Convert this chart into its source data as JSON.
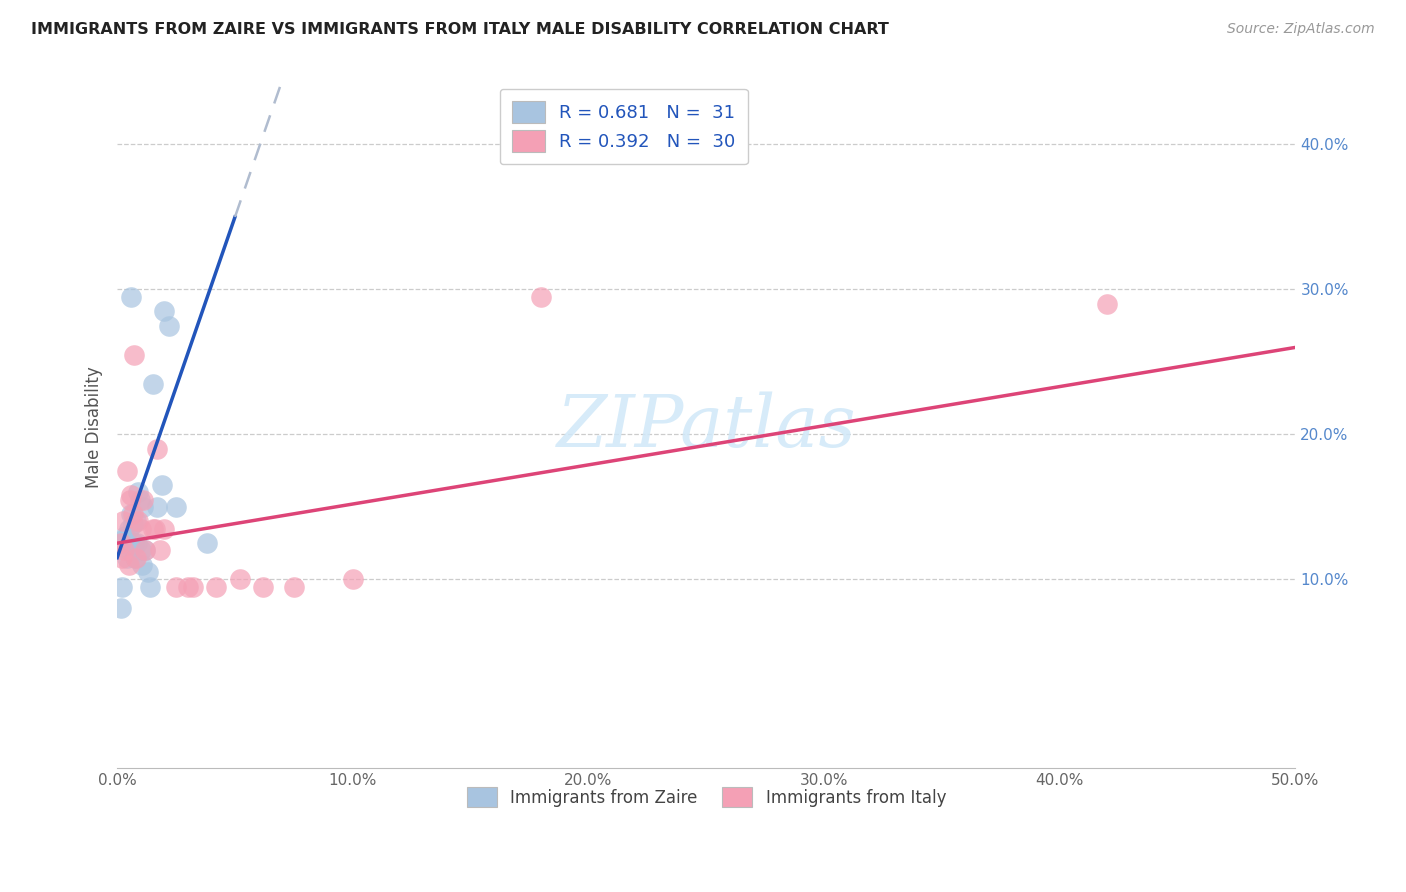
{
  "title": "IMMIGRANTS FROM ZAIRE VS IMMIGRANTS FROM ITALY MALE DISABILITY CORRELATION CHART",
  "source": "Source: ZipAtlas.com",
  "ylabel": "Male Disability",
  "x_ticks": [
    0.0,
    10.0,
    20.0,
    30.0,
    40.0,
    50.0
  ],
  "x_tick_labels": [
    "0.0%",
    "10.0%",
    "20.0%",
    "30.0%",
    "40.0%",
    "50.0%"
  ],
  "y_ticks_right": [
    10.0,
    20.0,
    30.0,
    40.0
  ],
  "y_tick_labels_right": [
    "10.0%",
    "20.0%",
    "30.0%",
    "40.0%"
  ],
  "xlim": [
    0.0,
    50.0
  ],
  "ylim": [
    -3.0,
    44.0
  ],
  "legend_r1": "R = 0.681   N =  31",
  "legend_r2": "R = 0.392   N =  30",
  "legend_label1": "Immigrants from Zaire",
  "legend_label2": "Immigrants from Italy",
  "zaire_color": "#a8c4e0",
  "italy_color": "#f4a0b5",
  "zaire_line_color": "#2255bb",
  "italy_line_color": "#dd4477",
  "dash_line_color": "#b0bccf",
  "watermark_color": "#d0e8f8",
  "zaire_x": [
    0.15,
    0.2,
    0.25,
    0.3,
    0.35,
    0.4,
    0.45,
    0.5,
    0.55,
    0.6,
    0.65,
    0.7,
    0.75,
    0.8,
    0.85,
    0.9,
    0.95,
    1.0,
    1.05,
    1.1,
    1.2,
    1.3,
    1.4,
    1.5,
    1.7,
    1.9,
    2.0,
    2.2,
    2.5,
    0.6,
    3.8
  ],
  "zaire_y": [
    8.0,
    9.5,
    12.5,
    12.8,
    13.0,
    11.5,
    12.0,
    13.5,
    12.0,
    14.5,
    13.8,
    12.5,
    11.5,
    14.0,
    12.5,
    16.0,
    15.5,
    12.0,
    11.0,
    15.0,
    12.0,
    10.5,
    9.5,
    23.5,
    15.0,
    16.5,
    28.5,
    27.5,
    15.0,
    29.5,
    12.5
  ],
  "italy_x": [
    0.15,
    0.2,
    0.25,
    0.3,
    0.4,
    0.5,
    0.55,
    0.6,
    0.65,
    0.7,
    0.8,
    0.9,
    1.0,
    1.1,
    1.2,
    1.5,
    1.6,
    1.7,
    1.8,
    2.0,
    2.5,
    3.0,
    3.2,
    4.2,
    5.2,
    6.2,
    7.5,
    10.0,
    18.0,
    42.0
  ],
  "italy_y": [
    12.5,
    11.5,
    14.0,
    12.0,
    17.5,
    11.0,
    15.5,
    15.8,
    14.5,
    25.5,
    11.5,
    14.0,
    13.5,
    15.5,
    12.0,
    13.5,
    13.5,
    19.0,
    12.0,
    13.5,
    9.5,
    9.5,
    9.5,
    9.5,
    10.0,
    9.5,
    9.5,
    10.0,
    29.5,
    29.0
  ],
  "zaire_line_x0": 0.0,
  "zaire_line_x1": 5.0,
  "zaire_line_dash_x0": 5.0,
  "zaire_line_dash_x1": 50.0,
  "italy_line_x0": 0.0,
  "italy_line_x1": 50.0,
  "zaire_line_y_at_0": 11.5,
  "zaire_line_y_at_5": 35.0,
  "italy_line_y_at_0": 12.5,
  "italy_line_y_at_50": 26.0
}
